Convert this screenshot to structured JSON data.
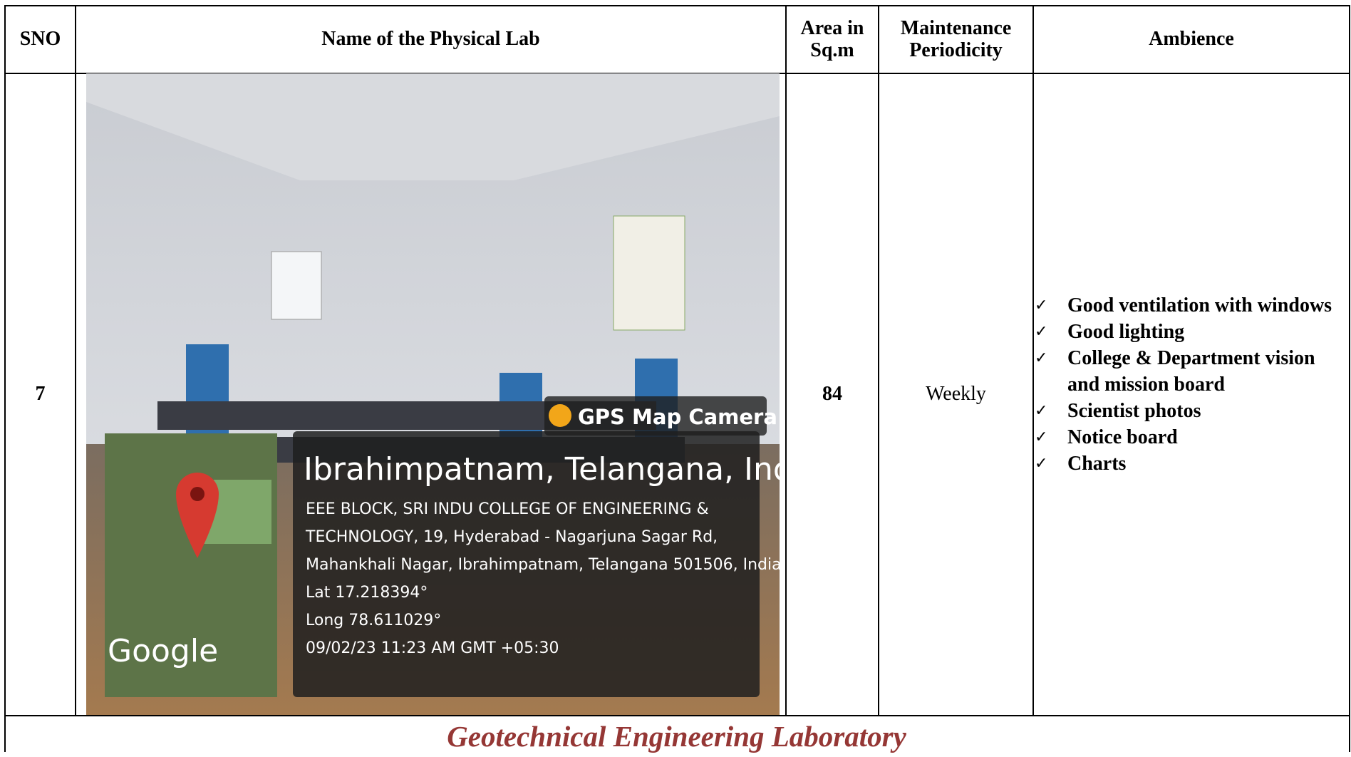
{
  "table": {
    "header": [
      "SNO",
      "Name of the Physical Lab",
      "Area in Sq.m",
      "Maintenance Periodicity",
      "Ambience"
    ],
    "rows": [
      {
        "sno": "7",
        "area": "84",
        "periodicity": "Weekly",
        "ambience": [
          "Good ventilation with windows",
          "Good lighting",
          "College & Department vision and mission board",
          "Scientist photos",
          "Notice board",
          "Charts"
        ],
        "photo": {
          "app_label": "GPS Map Camera",
          "location": "Ibrahimpatnam, Telangana, India",
          "address": [
            "EEE BLOCK, SRI INDU COLLEGE OF ENGINEERING &",
            "TECHNOLOGY, 19, Hyderabad - Nagarjuna Sagar Rd,",
            "Mahankhali Nagar, Ibrahimpatnam, Telangana 501506, India"
          ],
          "lat": "Lat 17.218394°",
          "long": "Long 78.611029°",
          "datetime": "09/02/23 11:23 AM GMT +05:30",
          "map_brand": "Google"
        }
      }
    ],
    "caption": "Geotechnical Engineering Laboratory"
  }
}
